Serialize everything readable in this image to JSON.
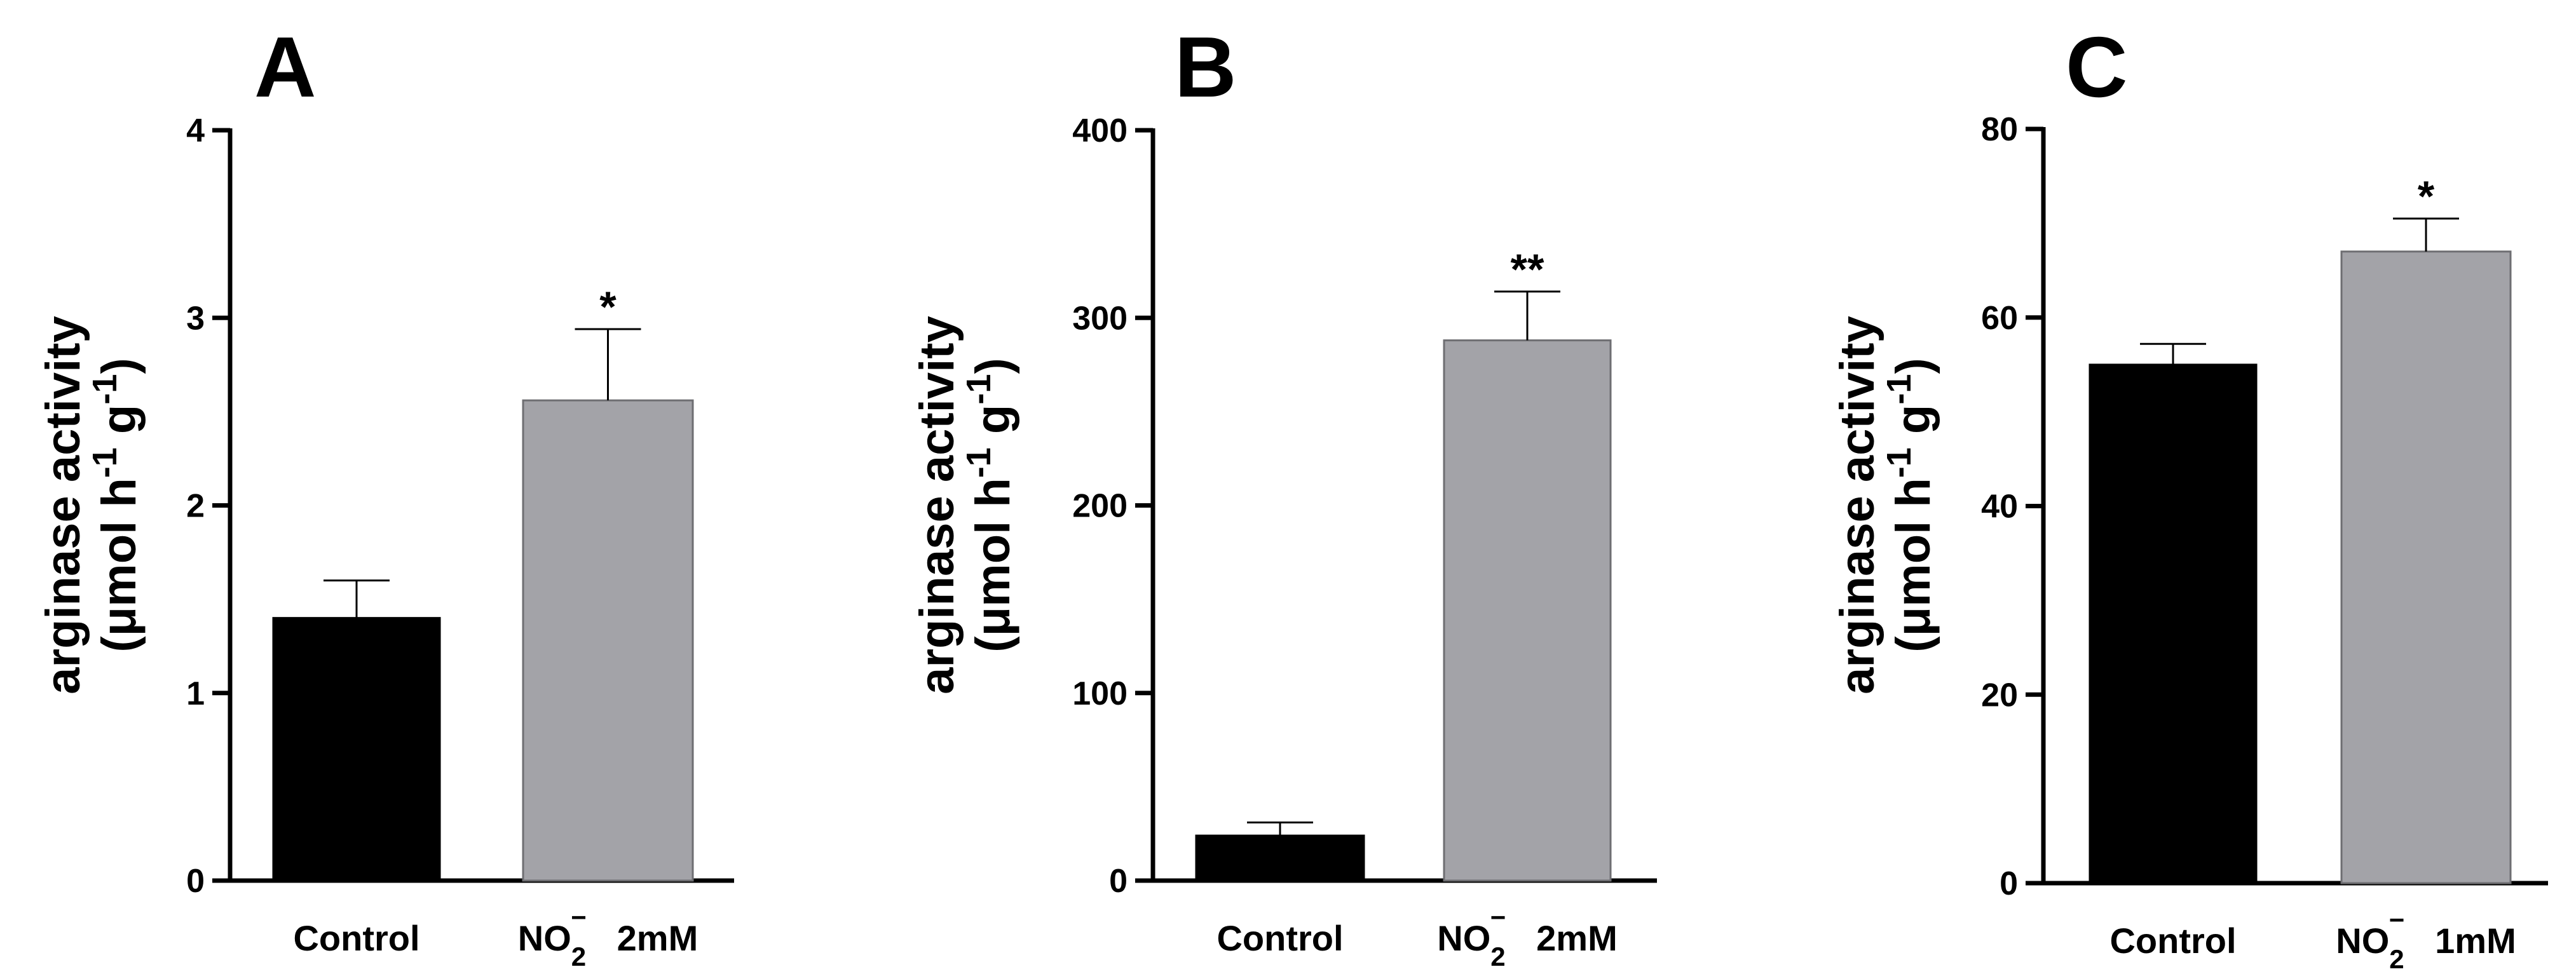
{
  "chart_data": [
    {
      "type": "bar",
      "panel_label": "A",
      "ylabel": "arginase activity",
      "ylabel_unit": {
        "open": "(",
        "mu": "μ",
        "text1": "mol h",
        "sup1": "-1",
        "text2": " g",
        "sup2": "-1",
        "close": ")"
      },
      "ylim": [
        0,
        4
      ],
      "yticks": [
        "0",
        "1",
        "2",
        "3",
        "4"
      ],
      "categories": [
        {
          "label": "Control"
        },
        {
          "label": "NO",
          "sub": "2",
          "sup": "−",
          "suffix": "2mM"
        }
      ],
      "values": [
        1.4,
        2.56
      ],
      "errors": [
        0.2,
        0.38
      ],
      "significance": [
        "",
        "*"
      ],
      "colors": [
        "#000000",
        "#a3a3a8"
      ]
    },
    {
      "type": "bar",
      "panel_label": "B",
      "ylabel": "arginase activity",
      "ylabel_unit": {
        "open": "(",
        "mu": "μ",
        "text1": "mol h",
        "sup1": "-1",
        "text2": " g",
        "sup2": "-1",
        "close": ")"
      },
      "ylim": [
        0,
        400
      ],
      "yticks": [
        "0",
        "100",
        "200",
        "300",
        "400"
      ],
      "categories": [
        {
          "label": "Control"
        },
        {
          "label": "NO",
          "sub": "2",
          "sup": "−",
          "suffix": "2mM"
        }
      ],
      "values": [
        24,
        288
      ],
      "errors": [
        7,
        26
      ],
      "significance": [
        "",
        "**"
      ],
      "colors": [
        "#000000",
        "#a3a3a8"
      ]
    },
    {
      "type": "bar",
      "panel_label": "C",
      "ylabel": "arginase activity",
      "ylabel_unit": {
        "open": "(",
        "mu": "μ",
        "text1": "mol h",
        "sup1": "-1",
        "text2": " g",
        "sup2": "-1",
        "close": ")"
      },
      "ylim": [
        0,
        80
      ],
      "yticks": [
        "0",
        "20",
        "40",
        "60",
        "80"
      ],
      "categories": [
        {
          "label": "Control"
        },
        {
          "label": "NO",
          "sub": "2",
          "sup": "−",
          "suffix": "1mM"
        }
      ],
      "values": [
        55,
        67
      ],
      "errors": [
        2.2,
        3.5
      ],
      "significance": [
        "",
        "*"
      ],
      "colors": [
        "#000000",
        "#a3a3a8"
      ]
    }
  ]
}
